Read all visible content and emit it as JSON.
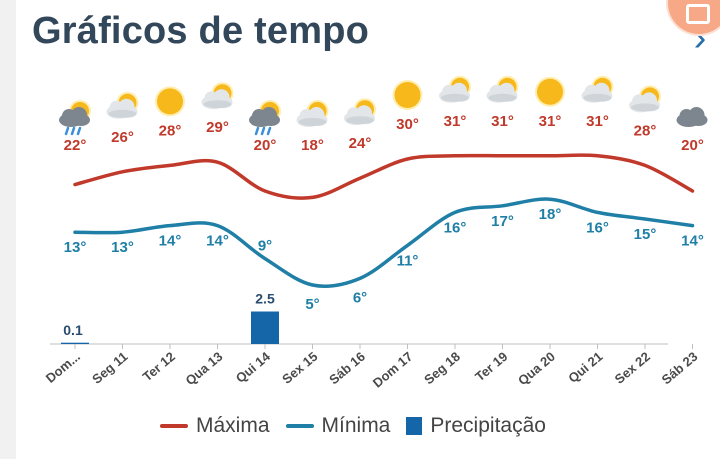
{
  "header": {
    "title": "Gráficos de tempo",
    "next_icon": "chevron-right-icon",
    "corner_icon": "camera-icon"
  },
  "colors": {
    "max": "#c0392b",
    "min": "#1f7fa6",
    "precip": "#1565a9",
    "title": "#33475b",
    "axis": "#bfbfbf"
  },
  "chart_data": {
    "type": "line",
    "categories": [
      "Dom...",
      "Seg 11",
      "Ter 12",
      "Qua 13",
      "Qui 14",
      "Sex 15",
      "Sáb 16",
      "Dom 17",
      "Seg 18",
      "Ter 19",
      "Qua 20",
      "Qui 21",
      "Sex 22",
      "Sáb 23"
    ],
    "icons": [
      "sun-rain-cloud-icon",
      "sun-cloud-icon",
      "sun-icon",
      "sun-cloud-icon",
      "sun-rain-cloud-icon",
      "sun-cloud-icon",
      "sun-cloud-icon",
      "sun-icon",
      "sun-cloud-icon",
      "sun-cloud-icon",
      "sun-icon",
      "sun-cloud-icon",
      "sun-cloud-icon",
      "cloud-icon"
    ],
    "series": [
      {
        "name": "Máxima",
        "values": [
          22,
          26,
          28,
          29,
          20,
          18,
          24,
          30,
          31,
          31,
          31,
          31,
          28,
          20
        ],
        "labels": [
          "22°",
          "26°",
          "28°",
          "29°",
          "20°",
          "18°",
          "24°",
          "30°",
          "31°",
          "31°",
          "31°",
          "31°",
          "28°",
          "20°"
        ]
      },
      {
        "name": "Mínima",
        "values": [
          13,
          13,
          14,
          14,
          9,
          5,
          6,
          11,
          16,
          17,
          18,
          16,
          15,
          14
        ],
        "labels": [
          "13°",
          "13°",
          "14°",
          "14°",
          "9°",
          "5°",
          "6°",
          "11°",
          "16°",
          "17°",
          "18°",
          "16°",
          "15°",
          "14°"
        ]
      },
      {
        "name": "Precipitação",
        "type": "bar",
        "values": [
          0.1,
          0,
          0,
          0,
          2.5,
          0,
          0,
          0,
          0,
          0,
          0,
          0,
          0,
          0
        ],
        "labels": [
          "0.1",
          "",
          "",
          "",
          "2.5",
          "",
          "",
          "",
          "",
          "",
          "",
          "",
          "",
          ""
        ]
      }
    ]
  },
  "legend": {
    "max_label": "Máxima",
    "min_label": "Mínima",
    "precip_label": "Precipitação"
  }
}
